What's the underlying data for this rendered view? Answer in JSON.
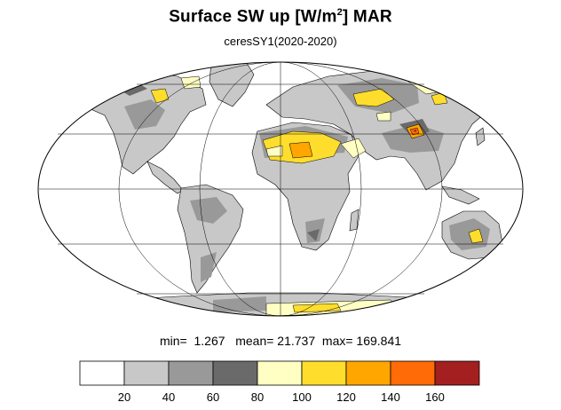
{
  "title": {
    "main": "Surface SW up [W/m",
    "sup": "2",
    "tail": "]  MAR"
  },
  "subtitle": "ceresSY1(2020-2020)",
  "stats": {
    "min_label": "min=",
    "min": "1.267",
    "mean_label": "mean=",
    "mean": "21.737",
    "max_label": "max=",
    "max": "169.841"
  },
  "colorbar": {
    "colors": [
      "#ffffff",
      "#c8c8c8",
      "#999999",
      "#6a6a6a",
      "#ffffc4",
      "#ffdd2c",
      "#ffa600",
      "#ff6b06",
      "#a41f1f"
    ],
    "labels": [
      "20",
      "40",
      "60",
      "80",
      "100",
      "120",
      "140",
      "160"
    ]
  },
  "map": {
    "projection": "Mollweide",
    "center_longitude": 0
  }
}
